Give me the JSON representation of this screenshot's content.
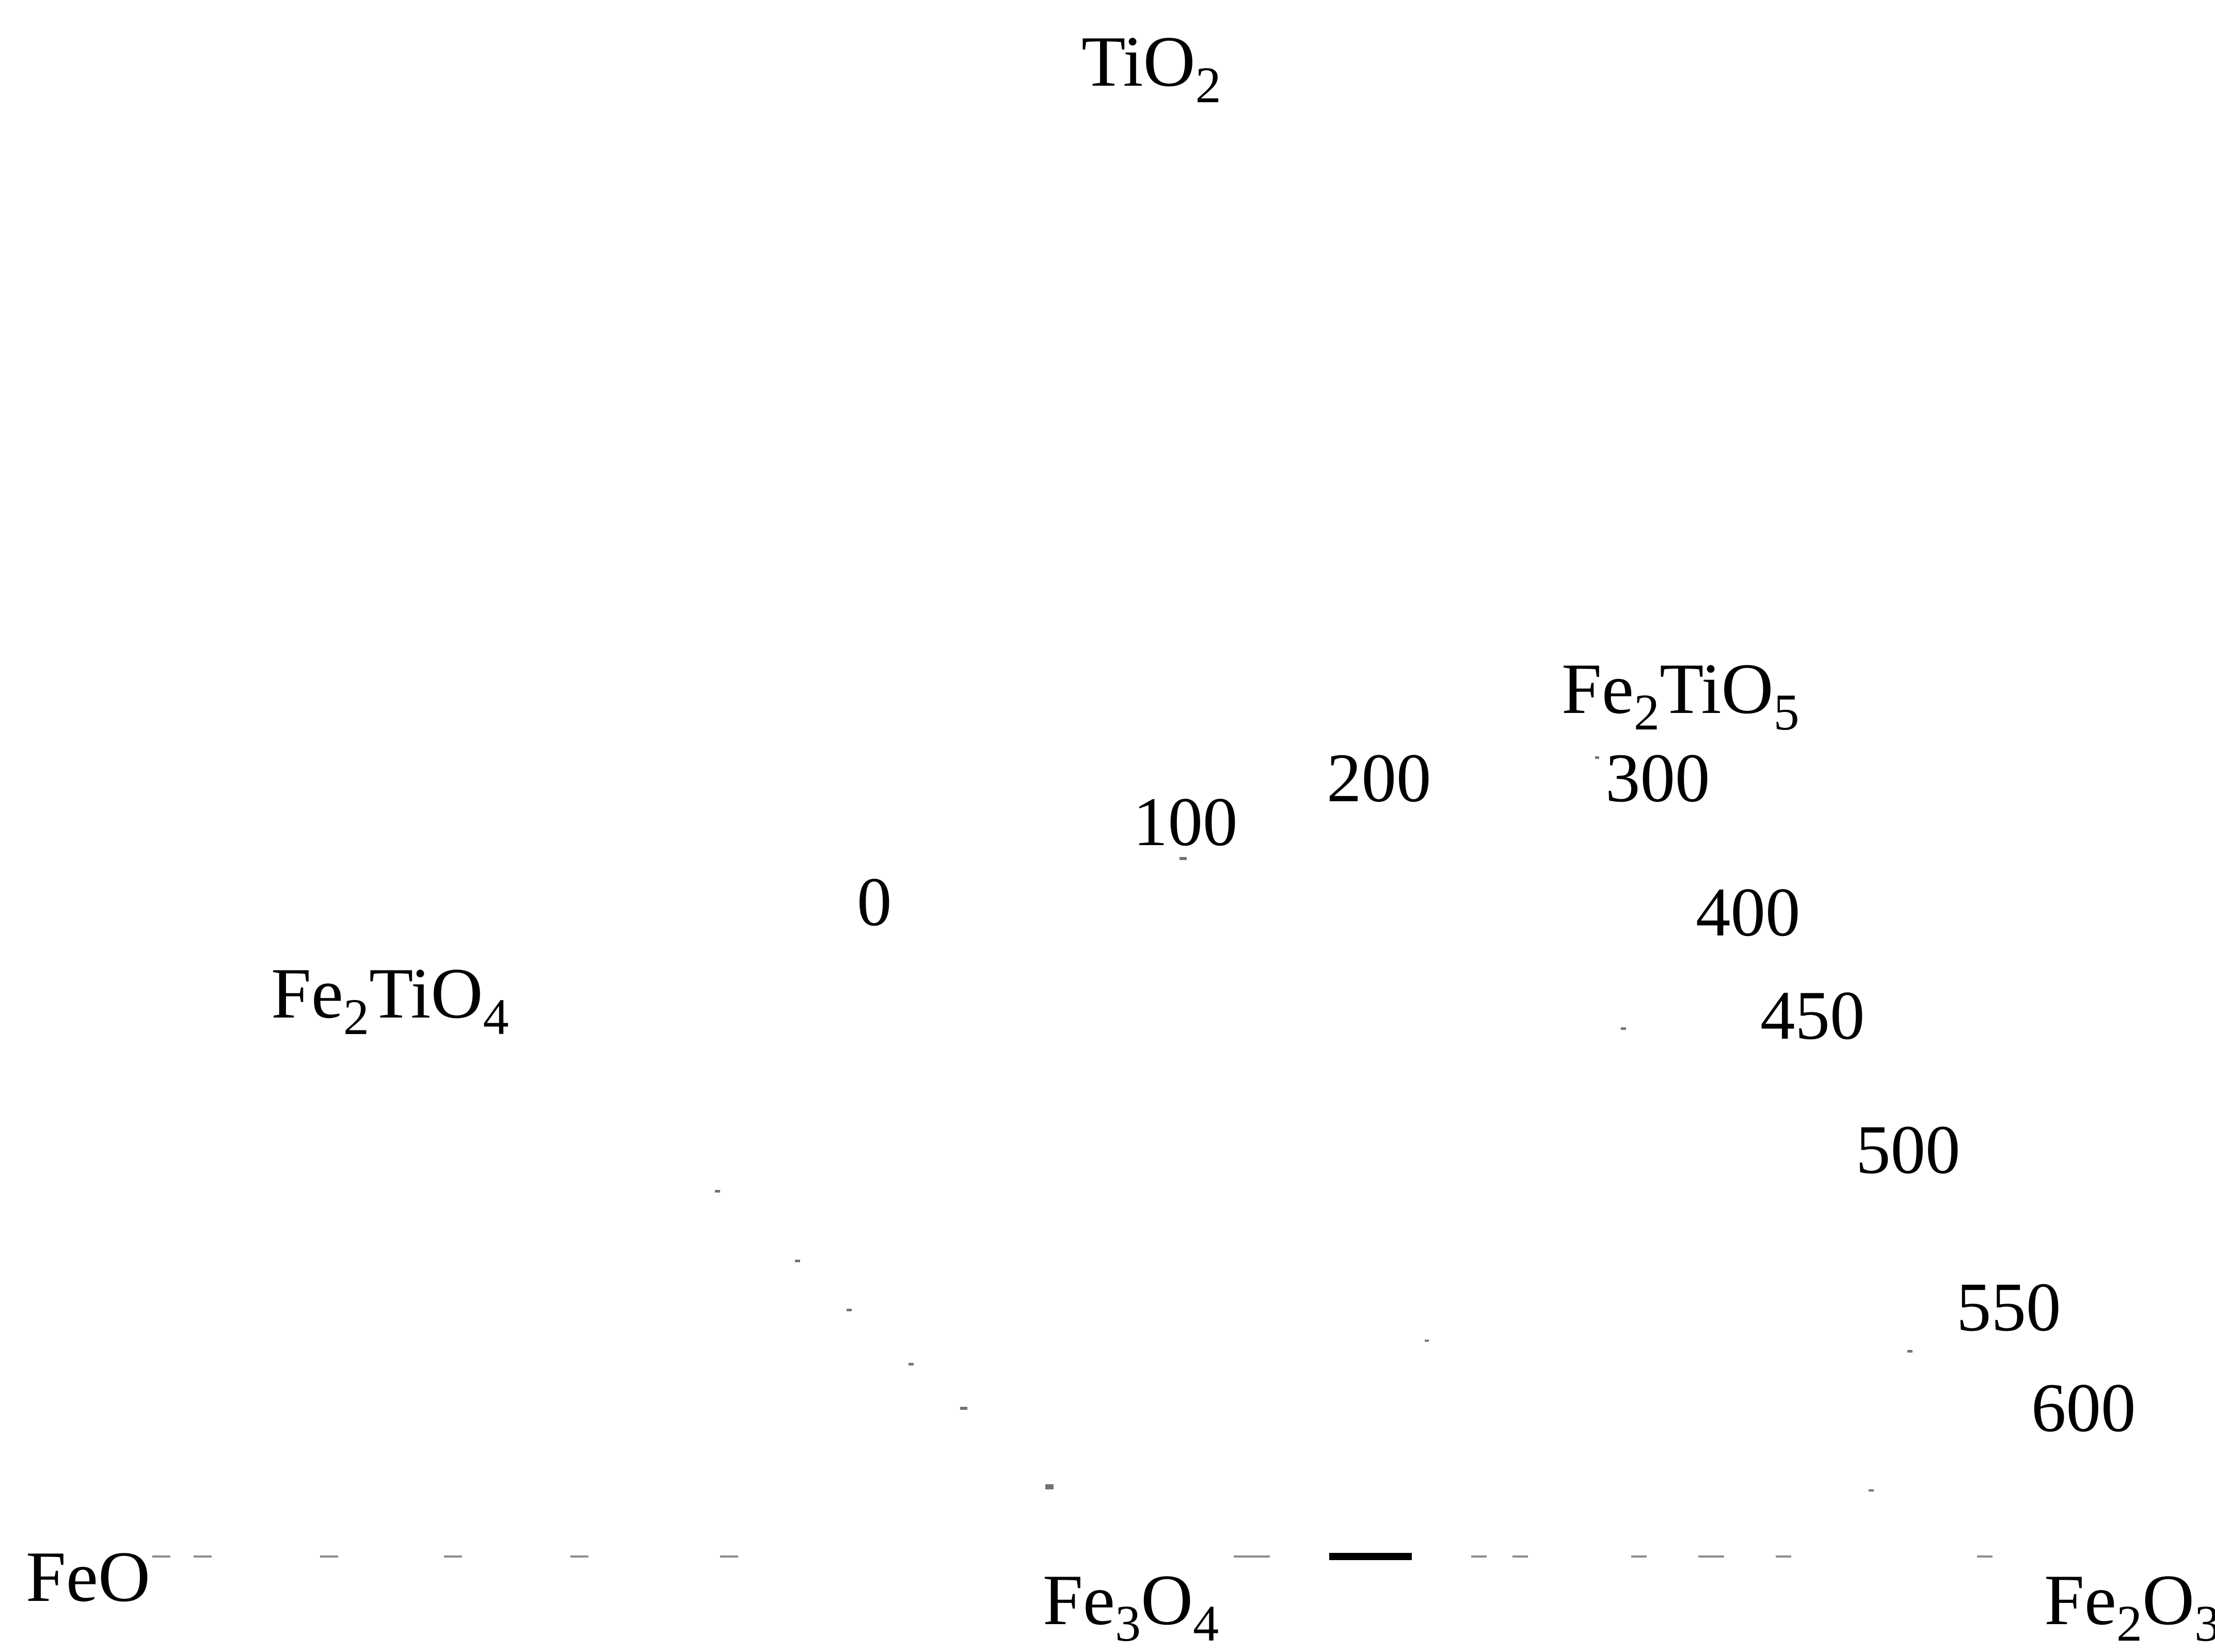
{
  "compounds": {
    "tio2": {
      "main": "TiO",
      "sub": "2"
    },
    "fe2tio5": {
      "a": "Fe",
      "a_sub": "2",
      "b": "TiO",
      "b_sub": "5"
    },
    "fe2tio4": {
      "a": "Fe",
      "a_sub": "2",
      "b": "TiO",
      "b_sub": "4"
    },
    "feo": {
      "main": "FeO"
    },
    "fe3o4": {
      "a": "Fe",
      "a_sub": "3",
      "b": "O",
      "b_sub": "4"
    },
    "fe2o3": {
      "a": "Fe",
      "a_sub": "2",
      "b": "O",
      "b_sub": "3"
    }
  },
  "temperatures": [
    "0",
    "100",
    "200",
    "300",
    "400",
    "450",
    "500",
    "550",
    "600"
  ]
}
